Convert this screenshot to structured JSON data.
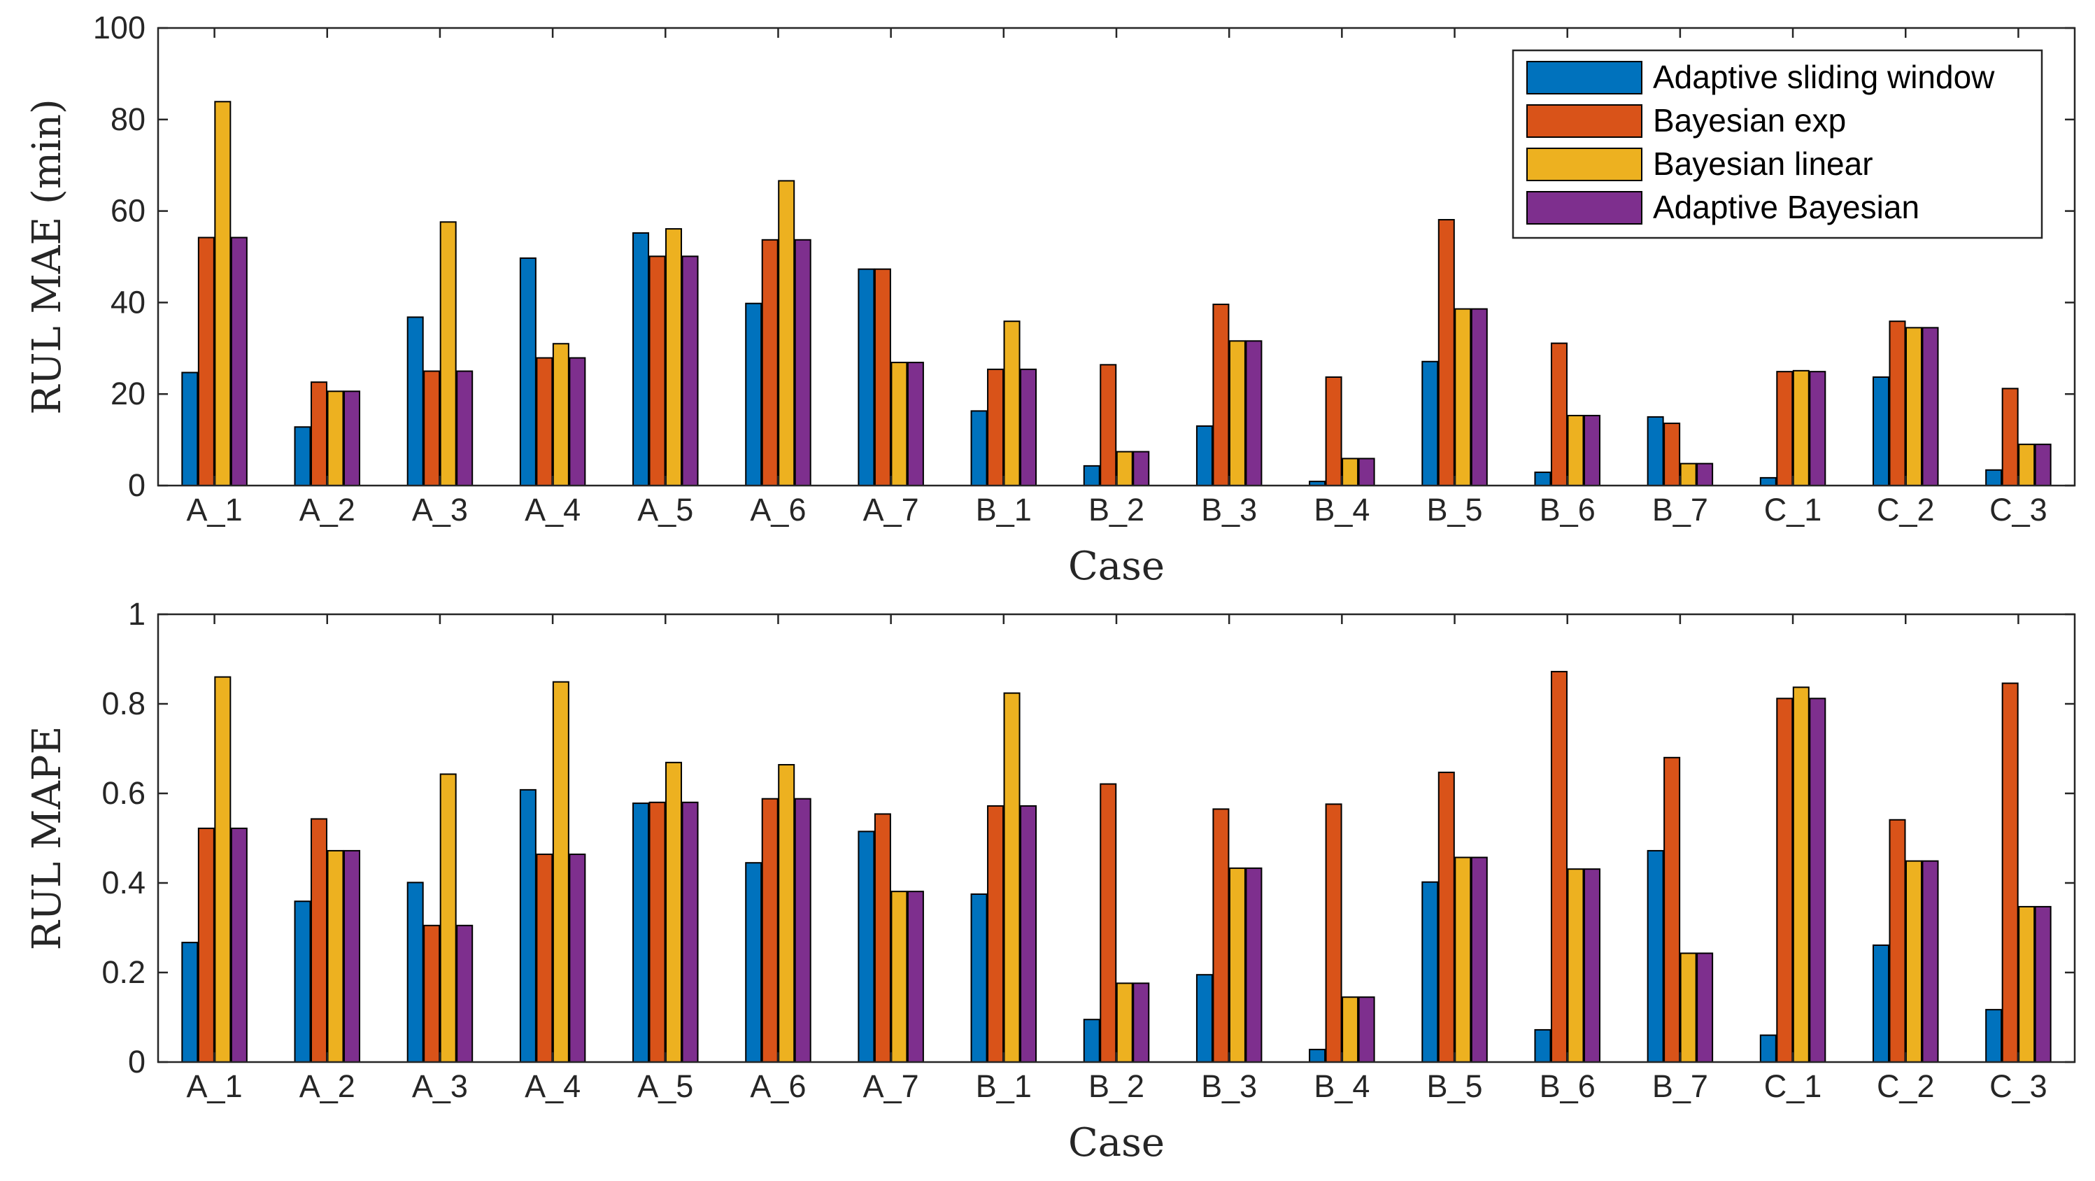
{
  "colors": {
    "series": [
      "#0072BD",
      "#D95319",
      "#EDB120",
      "#7E2F8E"
    ],
    "axis": "#262626",
    "bar_edge": "#000000",
    "background": "#ffffff"
  },
  "chart_data": [
    {
      "type": "bar",
      "title": "",
      "xlabel": "Case",
      "ylabel": "RUL MAE (min)",
      "ylim": [
        0,
        100
      ],
      "yticks": [
        0,
        20,
        40,
        60,
        80,
        100
      ],
      "ytick_labels": [
        "0",
        "20",
        "40",
        "60",
        "80",
        "100"
      ],
      "grid": false,
      "legend_position": "top-right",
      "categories": [
        "A_1",
        "A_2",
        "A_3",
        "A_4",
        "A_5",
        "A_6",
        "A_7",
        "B_1",
        "B_2",
        "B_3",
        "B_4",
        "B_5",
        "B_6",
        "B_7",
        "C_1",
        "C_2",
        "C_3"
      ],
      "series": [
        {
          "name": "Adaptive sliding window",
          "values": [
            24.7,
            12.8,
            36.8,
            49.7,
            55.2,
            39.8,
            47.3,
            16.3,
            4.3,
            13.0,
            0.9,
            27.1,
            2.9,
            15.0,
            1.7,
            23.7,
            3.4
          ]
        },
        {
          "name": "Bayesian exp",
          "values": [
            54.2,
            22.6,
            25.0,
            27.9,
            50.1,
            53.7,
            47.3,
            25.4,
            26.4,
            39.6,
            23.7,
            58.1,
            31.1,
            13.6,
            24.9,
            35.9,
            21.2
          ]
        },
        {
          "name": "Bayesian linear",
          "values": [
            83.9,
            20.6,
            57.6,
            31.0,
            56.1,
            66.6,
            26.9,
            35.9,
            7.4,
            31.6,
            5.9,
            38.6,
            15.3,
            4.8,
            25.1,
            34.5,
            9.0
          ]
        },
        {
          "name": "Adaptive Bayesian",
          "values": [
            54.2,
            20.6,
            25.0,
            27.9,
            50.1,
            53.7,
            26.9,
            25.4,
            7.4,
            31.6,
            5.9,
            38.6,
            15.3,
            4.8,
            24.9,
            34.5,
            9.0
          ]
        }
      ]
    },
    {
      "type": "bar",
      "title": "",
      "xlabel": "Case",
      "ylabel": "RUL MAPE",
      "ylim": [
        0,
        1
      ],
      "yticks": [
        0,
        0.2,
        0.4,
        0.6,
        0.8,
        1
      ],
      "ytick_labels": [
        "0",
        "0.2",
        "0.4",
        "0.6",
        "0.8",
        "1"
      ],
      "grid": false,
      "categories": [
        "A_1",
        "A_2",
        "A_3",
        "A_4",
        "A_5",
        "A_6",
        "A_7",
        "B_1",
        "B_2",
        "B_3",
        "B_4",
        "B_5",
        "B_6",
        "B_7",
        "C_1",
        "C_2",
        "C_3"
      ],
      "series": [
        {
          "name": "Adaptive sliding window",
          "values": [
            0.267,
            0.359,
            0.401,
            0.608,
            0.578,
            0.445,
            0.515,
            0.375,
            0.095,
            0.195,
            0.028,
            0.402,
            0.072,
            0.472,
            0.06,
            0.261,
            0.117
          ]
        },
        {
          "name": "Bayesian exp",
          "values": [
            0.522,
            0.543,
            0.305,
            0.464,
            0.58,
            0.588,
            0.554,
            0.572,
            0.621,
            0.565,
            0.576,
            0.647,
            0.872,
            0.68,
            0.812,
            0.541,
            0.846
          ]
        },
        {
          "name": "Bayesian linear",
          "values": [
            0.86,
            0.472,
            0.643,
            0.849,
            0.669,
            0.664,
            0.381,
            0.824,
            0.176,
            0.433,
            0.145,
            0.457,
            0.431,
            0.243,
            0.837,
            0.449,
            0.347
          ]
        },
        {
          "name": "Adaptive Bayesian",
          "values": [
            0.522,
            0.472,
            0.305,
            0.464,
            0.58,
            0.588,
            0.381,
            0.572,
            0.176,
            0.433,
            0.145,
            0.457,
            0.431,
            0.243,
            0.812,
            0.449,
            0.347
          ]
        }
      ]
    }
  ]
}
